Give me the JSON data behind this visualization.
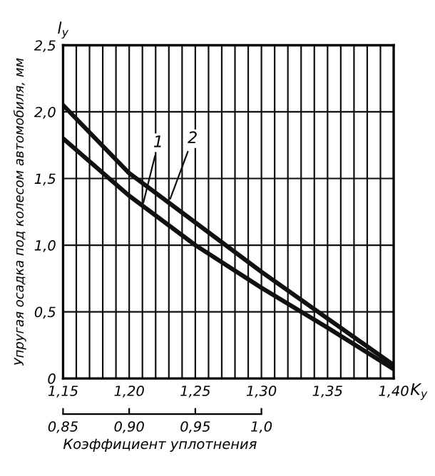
{
  "chart_data": {
    "type": "line",
    "xlabel": "K$_{y}$",
    "ylabel": "Упругая осадка под колесом автомобиля, мм",
    "title": "l$_{y}$",
    "x2label": "Коэффициент уплотнения",
    "x": [
      1.15,
      1.2,
      1.25,
      1.3,
      1.35,
      1.4
    ],
    "series": [
      {
        "color": "#111111",
        "values": [
          1.8,
          1.37,
          1.0,
          0.68,
          0.38,
          0.07
        ]
      },
      {
        "color": "#111111",
        "values": [
          2.05,
          1.54,
          1.17,
          0.8,
          0.45,
          0.1
        ]
      }
    ],
    "annotations": [
      {
        "text": "1",
        "x": 1.21,
        "y": 1.29
      },
      {
        "text": "2",
        "x": 1.23,
        "y": 1.32
      }
    ],
    "xlim": [
      1.15,
      1.4
    ],
    "xticks": [
      {
        "value": 1.15,
        "label": "1,15"
      },
      {
        "value": 1.2,
        "label": "1,20"
      },
      {
        "value": 1.25,
        "label": "1,25"
      },
      {
        "value": 1.3,
        "label": "1,30"
      },
      {
        "value": 1.35,
        "label": "1,35"
      },
      {
        "value": 1.4,
        "label": "1,40"
      }
    ],
    "ylim": [
      0,
      2.5
    ],
    "yticks": [
      {
        "value": 0,
        "label": "0"
      },
      {
        "value": 0.5,
        "label": "0,5"
      },
      {
        "value": 1.0,
        "label": "1,0"
      },
      {
        "value": 1.5,
        "label": "1,5"
      },
      {
        "value": 2.0,
        "label": "2,0"
      },
      {
        "value": 2.5,
        "label": "2,5"
      }
    ],
    "x2lim": [
      0.85,
      1.1
    ],
    "x2ticks": [
      {
        "value": 0.85,
        "label": "0,85"
      },
      {
        "value": 0.9,
        "label": "0,90"
      },
      {
        "value": 0.95,
        "label": "0,95"
      },
      {
        "value": 1.0,
        "label": "1,0"
      }
    ],
    "grid": true,
    "marker": "none",
    "line_style": "solid"
  }
}
